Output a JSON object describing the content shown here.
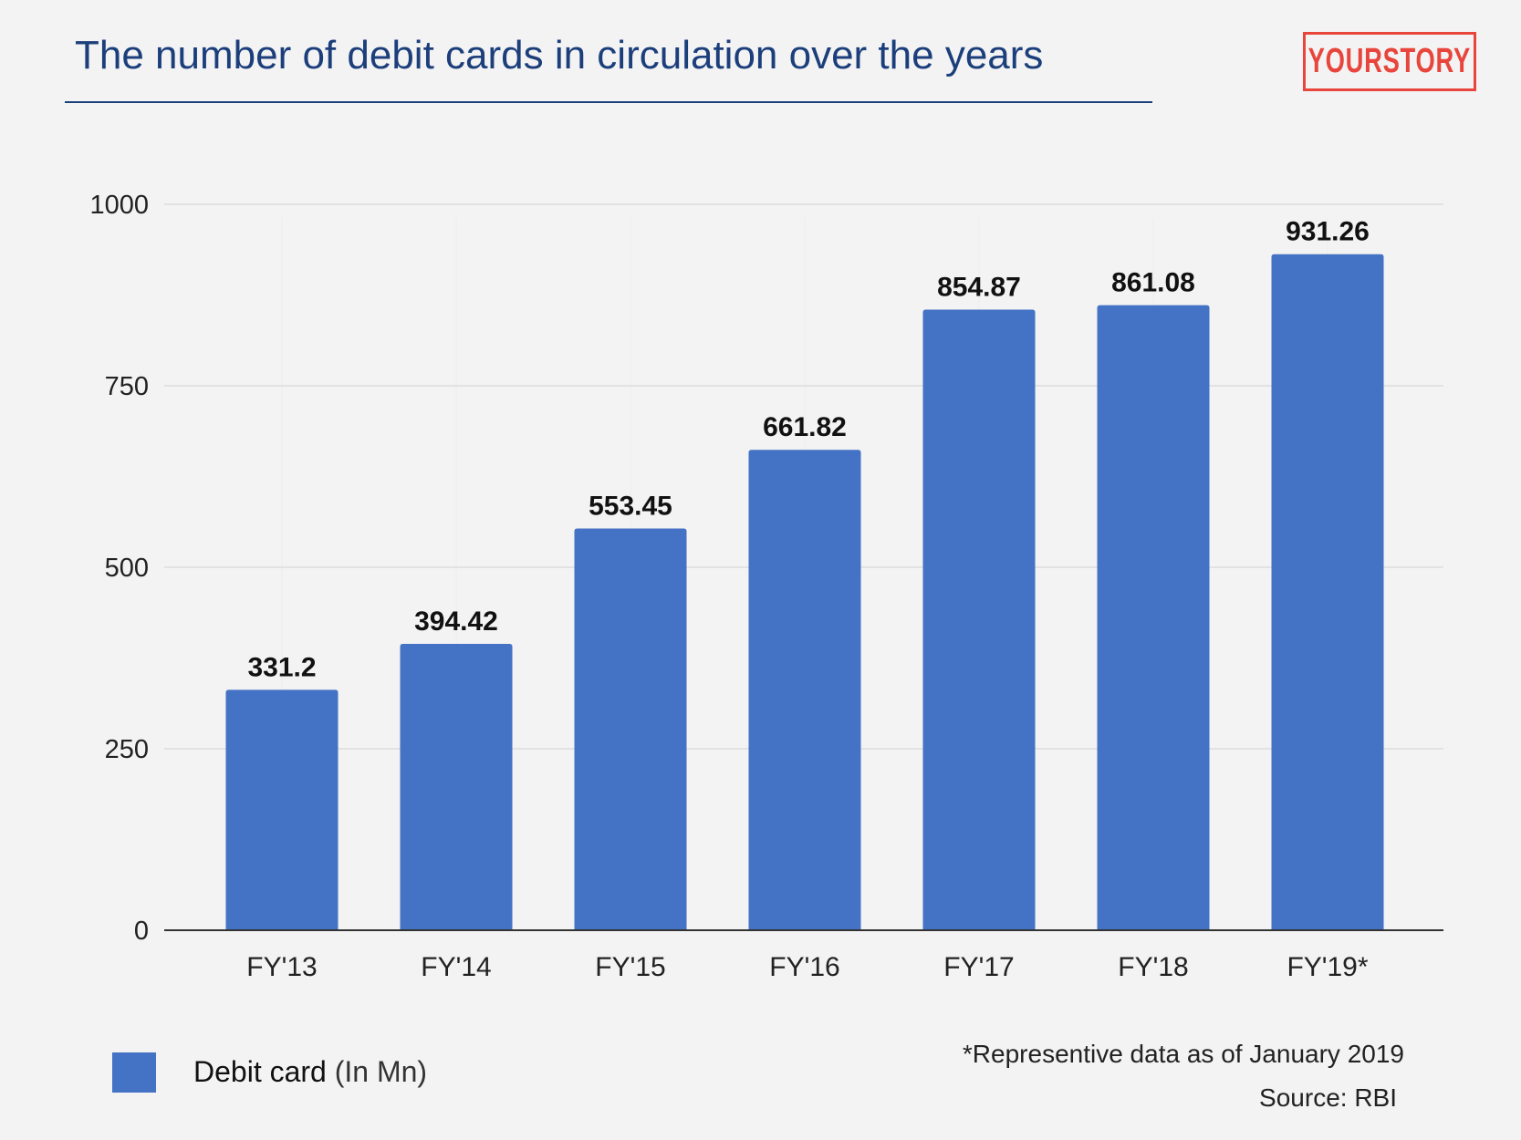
{
  "title": "The number of debit cards in circulation over the years",
  "logo_text": "YOURSTORY",
  "colors": {
    "bar": "#4472c4",
    "title": "#1c3f7c",
    "logo": "#e8453c",
    "background": "#f3f3f3"
  },
  "chart_data": {
    "type": "bar",
    "categories": [
      "FY'13",
      "FY'14",
      "FY'15",
      "FY'16",
      "FY'17",
      "FY'18",
      "FY'19*"
    ],
    "series": [
      {
        "name": "Debit card (In Mn)",
        "values": [
          331.2,
          394.42,
          553.45,
          661.82,
          854.87,
          861.08,
          931.26
        ]
      }
    ],
    "data_labels": [
      "331.2",
      "394.42",
      "553.45",
      "661.82",
      "854.87",
      "861.08",
      "931.26"
    ],
    "ylim": [
      0,
      1000
    ],
    "yticks": [
      0,
      250,
      500,
      750,
      1000
    ],
    "grid": true,
    "legend": "bottom-left"
  },
  "legend": {
    "label": "Debit card",
    "unit": "(In Mn)"
  },
  "footnote": "*Representive data as of January 2019",
  "source": "Source: RBI"
}
